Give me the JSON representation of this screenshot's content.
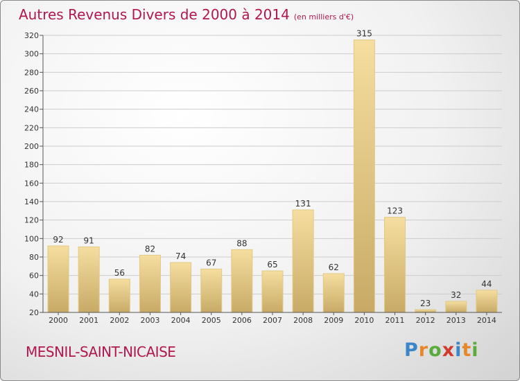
{
  "title": {
    "main": "Autres Revenus Divers de 2000 à 2014",
    "unit": "(en milliers d'€)"
  },
  "commune": "MESNIL-SAINT-NICAISE",
  "logo": {
    "text": "Proxiti",
    "letters": [
      {
        "char": "P",
        "color": "#3a86c8"
      },
      {
        "char": "r",
        "color": "#e8872a"
      },
      {
        "char": "o",
        "color": "#5aab3c"
      },
      {
        "char": "x",
        "color": "#d23a2e"
      },
      {
        "char": "i",
        "color": "#3a86c8"
      },
      {
        "char": "t",
        "color": "#e8872a"
      },
      {
        "char": "i",
        "color": "#5aab3c"
      }
    ]
  },
  "colors": {
    "bar_light": "#f5dea0",
    "bar_dark": "#c8aa66",
    "title": "#b0174f",
    "grid": "#cccccc",
    "axis": "#555555"
  },
  "chart_data": {
    "type": "bar",
    "title": "Autres Revenus Divers de 2000 à 2014",
    "ylabel": "",
    "xlabel": "",
    "ylim": [
      20,
      320
    ],
    "yticks": [
      20,
      40,
      60,
      80,
      100,
      120,
      140,
      160,
      180,
      200,
      220,
      240,
      260,
      280,
      300,
      320
    ],
    "grid": "horizontal",
    "categories": [
      "2000",
      "2001",
      "2002",
      "2003",
      "2004",
      "2005",
      "2006",
      "2007",
      "2008",
      "2009",
      "2010",
      "2011",
      "2012",
      "2013",
      "2014"
    ],
    "values": [
      92,
      91,
      56,
      82,
      74,
      67,
      88,
      65,
      131,
      62,
      315,
      123,
      23,
      32,
      44
    ]
  }
}
